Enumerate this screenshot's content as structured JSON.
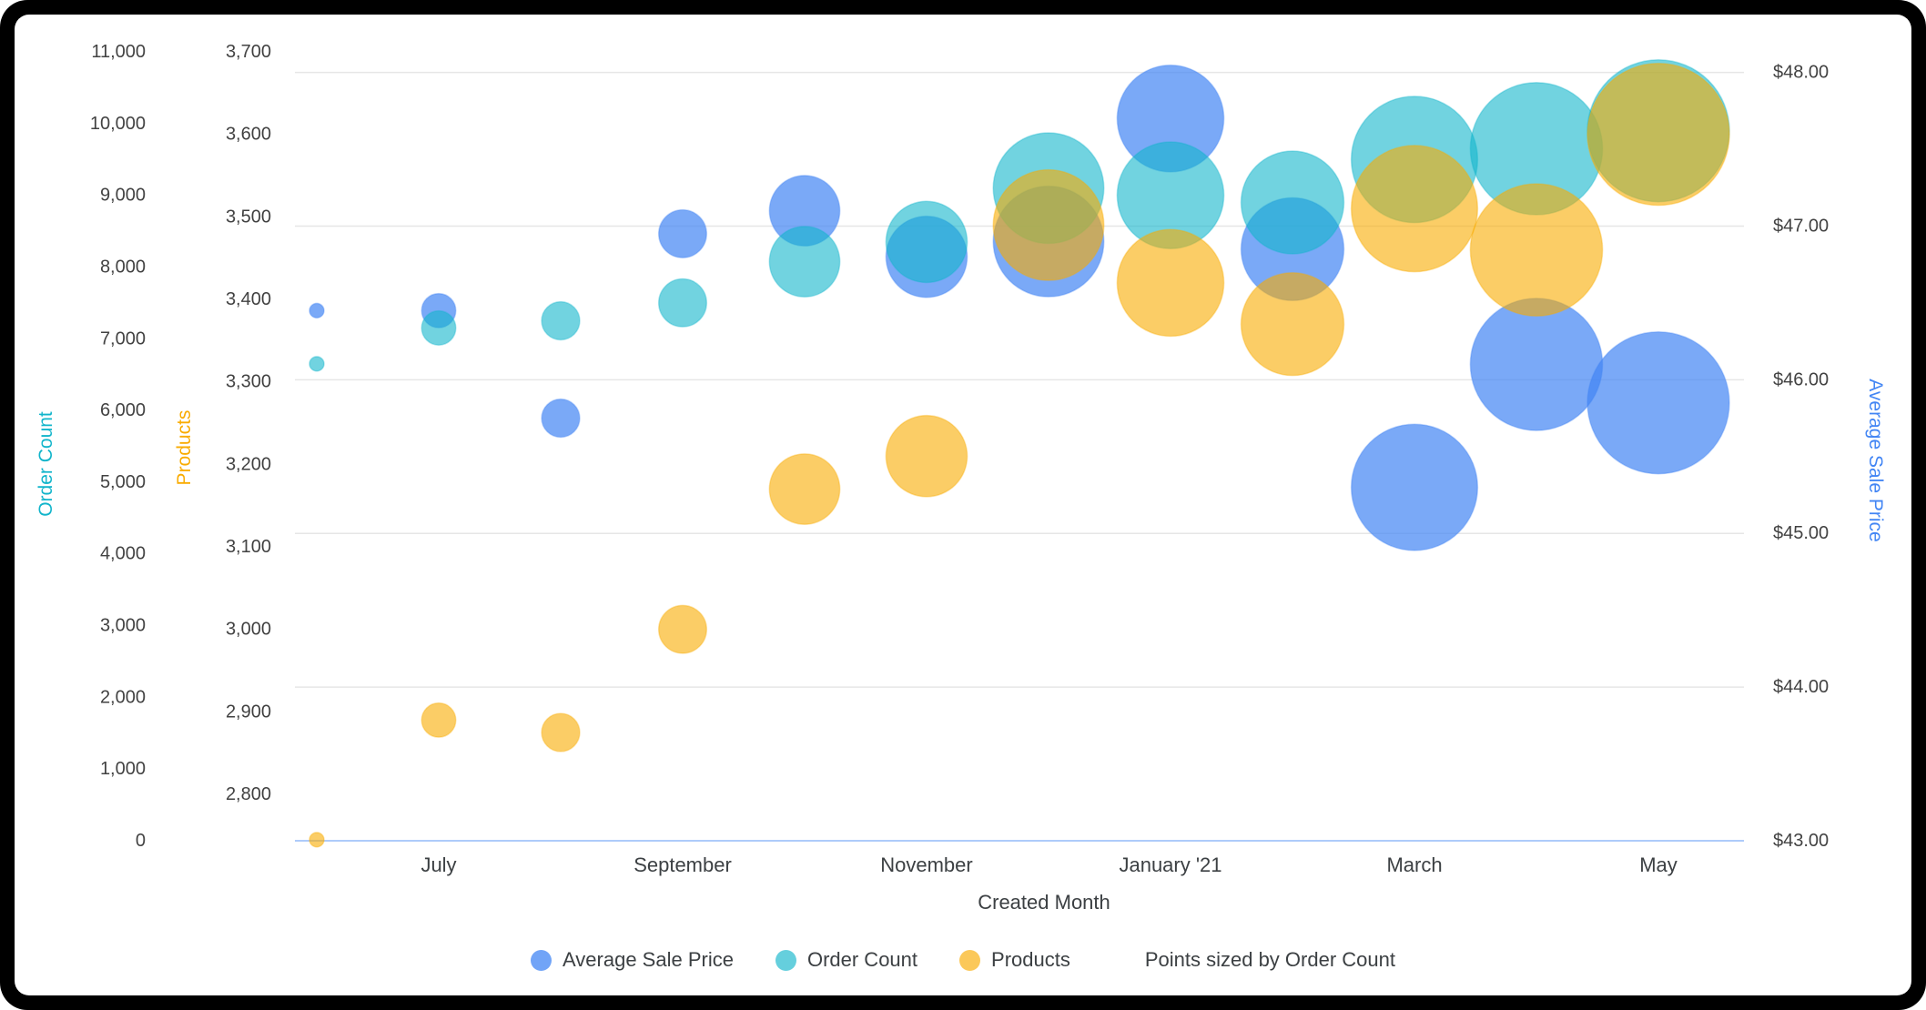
{
  "frame": {
    "background": "#000000",
    "card_background": "#ffffff"
  },
  "chart_data": {
    "type": "scatter",
    "subtype": "bubble",
    "title": "",
    "xlabel": "Created Month",
    "x_tick_labels": [
      "July",
      "September",
      "November",
      "January '21",
      "March",
      "May"
    ],
    "x_tick_indices": [
      1,
      3,
      5,
      7,
      9,
      11
    ],
    "n_points": 12,
    "grid": true,
    "colors": {
      "gridline": "#e6e6e6",
      "baseline": "#aecbfa",
      "tick_text": "#424242",
      "axis_text": "#3c4043"
    },
    "axes": {
      "order_count": {
        "title": "Order Count",
        "color": "#12B5CB",
        "min": 0,
        "max": 11000,
        "tick_labels": [
          "0",
          "1,000",
          "2,000",
          "3,000",
          "4,000",
          "5,000",
          "6,000",
          "7,000",
          "8,000",
          "9,000",
          "10,000",
          "11,000"
        ]
      },
      "products": {
        "title": "Products",
        "color": "#F9AB00",
        "min": 2800,
        "max": 3700,
        "tick_labels": [
          "2,800",
          "2,900",
          "3,000",
          "3,100",
          "3,200",
          "3,300",
          "3,400",
          "3,500",
          "3,600",
          "3,700"
        ]
      },
      "price": {
        "title": "Average Sale Price",
        "color": "#4285F4",
        "min": 43,
        "max": 48,
        "tick_labels": [
          "$43.00",
          "$44.00",
          "$45.00",
          "$46.00",
          "$47.00",
          "$48.00"
        ]
      }
    },
    "series": [
      {
        "name": "Average Sale Price",
        "axis": "price",
        "color": "#4285F4",
        "fill_opacity": 0.7,
        "values": [
          46.45,
          46.45,
          45.75,
          46.95,
          47.1,
          46.8,
          46.9,
          47.7,
          46.85,
          45.3,
          46.1,
          45.85
        ]
      },
      {
        "name": "Order Count",
        "axis": "order_count",
        "color": "#12B5CB",
        "fill_opacity": 0.6,
        "values": [
          6650,
          7150,
          7250,
          7500,
          8075,
          8350,
          9100,
          9000,
          8900,
          9500,
          9650,
          9900
        ]
      },
      {
        "name": "Products",
        "axis": "products",
        "color": "#F9AB00",
        "fill_opacity": 0.6,
        "values": [
          2745,
          2890,
          2875,
          3000,
          3170,
          3210,
          3490,
          3420,
          3370,
          3510,
          3460,
          3600
        ]
      }
    ],
    "size_by": "Order Count",
    "size_note": "Points sized by Order Count"
  }
}
